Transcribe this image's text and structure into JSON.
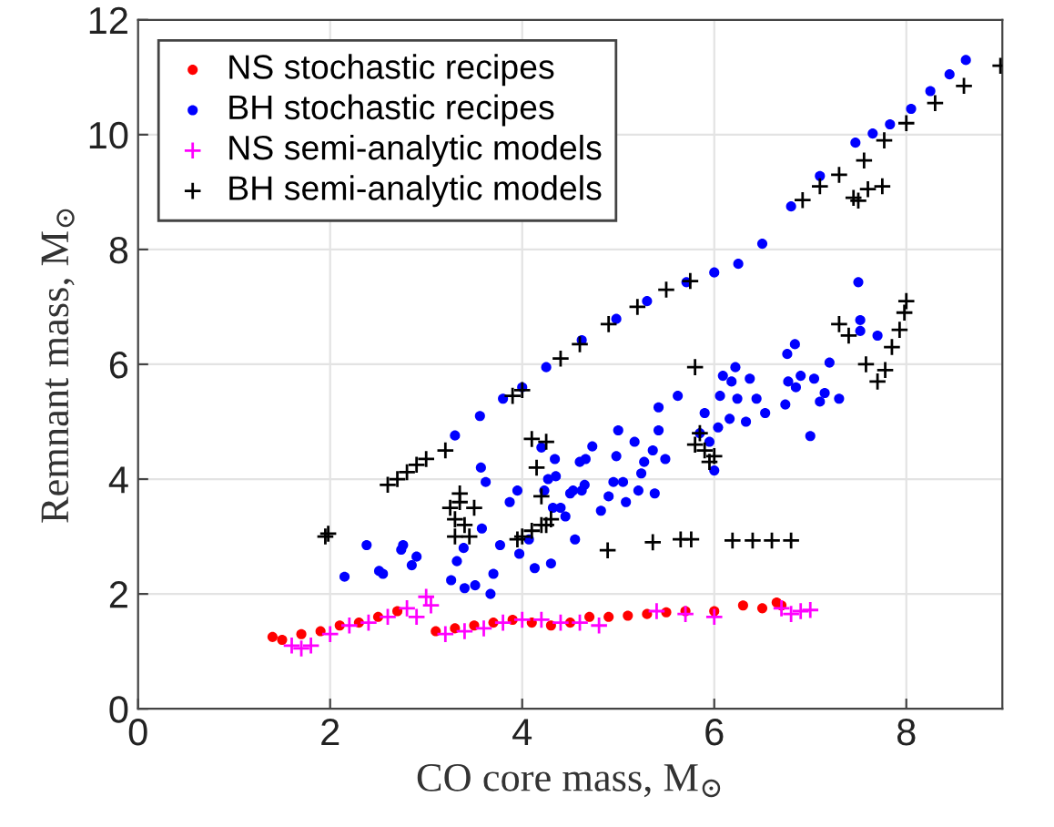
{
  "chart_data": {
    "type": "scatter",
    "xlabel": "CO core mass, M$_{⊙}$",
    "ylabel": "Remnant mass, M$_{⊙}$",
    "xlim": [
      0,
      9
    ],
    "ylim": [
      0,
      12
    ],
    "xticks": [
      0,
      2,
      4,
      6,
      8
    ],
    "yticks": [
      0,
      2,
      4,
      6,
      8,
      10,
      12
    ],
    "grid": true,
    "legend": "top left",
    "series": [
      {
        "name": "NS stochastic recipes",
        "color": "#ff0000",
        "marker": "circle",
        "x": [
          1.4,
          1.5,
          1.7,
          1.9,
          2.1,
          2.3,
          2.5,
          2.7,
          3.1,
          3.3,
          3.5,
          3.7,
          3.9,
          4.1,
          4.3,
          4.5,
          4.7,
          4.9,
          5.1,
          5.3,
          5.5,
          5.7,
          6.0,
          6.3,
          6.5,
          6.65,
          6.7
        ],
        "values": [
          1.25,
          1.2,
          1.3,
          1.35,
          1.45,
          1.5,
          1.6,
          1.7,
          1.35,
          1.4,
          1.45,
          1.5,
          1.55,
          1.5,
          1.45,
          1.5,
          1.6,
          1.6,
          1.62,
          1.65,
          1.68,
          1.7,
          1.7,
          1.8,
          1.75,
          1.85,
          1.8
        ]
      },
      {
        "name": "BH stochastic recipes",
        "color": "#0000ff",
        "marker": "circle",
        "x": [
          3.3,
          3.56,
          3.8,
          4.0,
          4.25,
          4.62,
          4.98,
          5.3,
          5.71,
          6.0,
          6.25,
          6.5,
          6.8,
          7.1,
          7.47,
          7.65,
          7.83,
          8.05,
          8.25,
          8.45,
          8.62,
          2.15,
          2.38,
          2.51,
          2.55,
          2.74,
          2.76,
          2.85,
          2.9,
          3.26,
          3.32,
          3.4,
          3.51,
          3.39,
          3.58,
          3.57,
          3.62,
          3.67,
          3.7,
          3.77,
          3.87,
          3.95,
          3.97,
          4.13,
          4.07,
          4.2,
          4.23,
          4.27,
          4.32,
          4.4,
          4.45,
          4.5,
          4.6,
          4.55,
          4.62,
          4.34,
          4.35,
          4.53,
          4.65,
          4.66,
          4.73,
          4.3,
          4.82,
          4.9,
          4.95,
          5.05,
          5.08,
          4.98,
          5.0,
          5.17,
          5.21,
          5.24,
          5.27,
          5.36,
          5.38,
          5.42,
          5.42,
          5.49,
          5.62,
          5.85,
          5.9,
          5.95,
          6.0,
          6.04,
          6.09,
          6.06,
          6.16,
          6.18,
          6.22,
          6.24,
          6.33,
          6.37,
          6.44,
          6.53,
          6.74,
          6.77,
          6.85,
          6.9,
          7.0,
          7.04,
          7.1,
          7.15,
          7.3,
          7.5,
          7.52,
          7.52,
          7.7,
          6.76,
          6.84,
          7.2
        ],
        "values": [
          4.76,
          5.1,
          5.4,
          5.6,
          5.95,
          6.42,
          6.79,
          7.1,
          7.43,
          7.6,
          7.75,
          8.1,
          8.75,
          9.28,
          9.86,
          10.02,
          10.18,
          10.45,
          10.76,
          11.05,
          11.3,
          2.3,
          2.85,
          2.4,
          2.35,
          2.77,
          2.85,
          2.5,
          2.65,
          2.24,
          2.57,
          2.1,
          2.15,
          2.8,
          3.14,
          4.2,
          3.95,
          2.0,
          2.35,
          2.85,
          3.6,
          3.8,
          2.7,
          2.45,
          2.95,
          4.55,
          3.8,
          4.0,
          3.5,
          3.5,
          3.35,
          3.75,
          4.3,
          2.95,
          3.8,
          4.35,
          4.05,
          3.8,
          3.9,
          4.35,
          4.57,
          2.53,
          3.45,
          3.7,
          3.95,
          3.95,
          3.6,
          4.4,
          4.85,
          4.65,
          3.8,
          4.1,
          4.3,
          4.5,
          3.75,
          4.85,
          5.25,
          4.35,
          5.45,
          4.8,
          5.15,
          4.65,
          4.15,
          4.9,
          5.8,
          5.45,
          5.05,
          5.7,
          5.95,
          5.4,
          5.0,
          5.75,
          5.4,
          5.15,
          5.3,
          5.7,
          5.6,
          5.8,
          4.75,
          5.75,
          5.35,
          5.5,
          5.4,
          7.43,
          6.77,
          6.58,
          6.5,
          6.18,
          6.35,
          6.03
        ]
      },
      {
        "name": "NS semi-analytic models",
        "color": "#ff00ff",
        "marker": "cross",
        "x": [
          1.6,
          1.7,
          1.8,
          2.0,
          2.2,
          2.4,
          2.6,
          2.8,
          3.0,
          2.9,
          3.05,
          3.2,
          3.4,
          3.6,
          3.8,
          4.0,
          4.2,
          4.4,
          4.6,
          4.8,
          5.4,
          5.7,
          6.0,
          6.7,
          6.9,
          7.0,
          6.8
        ],
        "values": [
          1.1,
          1.05,
          1.1,
          1.3,
          1.45,
          1.5,
          1.6,
          1.75,
          1.95,
          1.6,
          1.8,
          1.3,
          1.35,
          1.4,
          1.5,
          1.55,
          1.55,
          1.5,
          1.5,
          1.45,
          1.7,
          1.65,
          1.6,
          1.75,
          1.7,
          1.72,
          1.65
        ]
      },
      {
        "name": "BH semi-analytic models",
        "color": "#000000",
        "marker": "cross",
        "x": [
          2.6,
          2.7,
          2.8,
          2.9,
          3.0,
          3.2,
          1.95,
          1.98,
          3.25,
          3.3,
          3.35,
          3.4,
          3.3,
          3.45,
          3.35,
          3.5,
          4.1,
          4.15,
          4.2,
          4.0,
          4.1,
          4.2,
          4.3,
          3.95,
          4.25,
          3.9,
          4.0,
          4.4,
          4.6,
          4.9,
          5.2,
          5.5,
          5.75,
          6.92,
          7.1,
          7.3,
          7.56,
          7.45,
          7.6,
          7.75,
          7.5,
          7.77,
          8.0,
          8.3,
          8.6,
          8.98,
          5.8,
          7.3,
          7.4,
          7.58,
          7.7,
          7.78,
          7.85,
          7.93,
          7.98,
          8.0,
          5.85,
          5.9,
          5.95,
          5.8,
          6.0,
          4.89,
          5.36,
          5.65,
          5.76,
          6.19,
          6.4,
          6.6,
          6.8,
          4.25
        ],
        "values": [
          3.9,
          4.0,
          4.12,
          4.25,
          4.35,
          4.5,
          3.0,
          3.05,
          3.5,
          3.3,
          3.6,
          3.2,
          3.0,
          3.0,
          3.75,
          3.5,
          4.7,
          4.2,
          3.7,
          3.0,
          3.1,
          3.2,
          3.3,
          2.95,
          4.65,
          5.45,
          5.55,
          6.1,
          6.35,
          6.7,
          7.0,
          7.3,
          7.45,
          8.86,
          9.1,
          9.3,
          9.55,
          8.9,
          9.05,
          9.1,
          8.85,
          9.9,
          10.2,
          10.55,
          10.85,
          11.2,
          5.95,
          6.7,
          6.5,
          6.0,
          5.7,
          5.9,
          6.3,
          6.6,
          6.9,
          7.1,
          4.8,
          4.5,
          4.3,
          4.6,
          4.4,
          2.76,
          2.9,
          2.95,
          2.95,
          2.93,
          2.93,
          2.93,
          2.93,
          3.2
        ]
      }
    ]
  }
}
